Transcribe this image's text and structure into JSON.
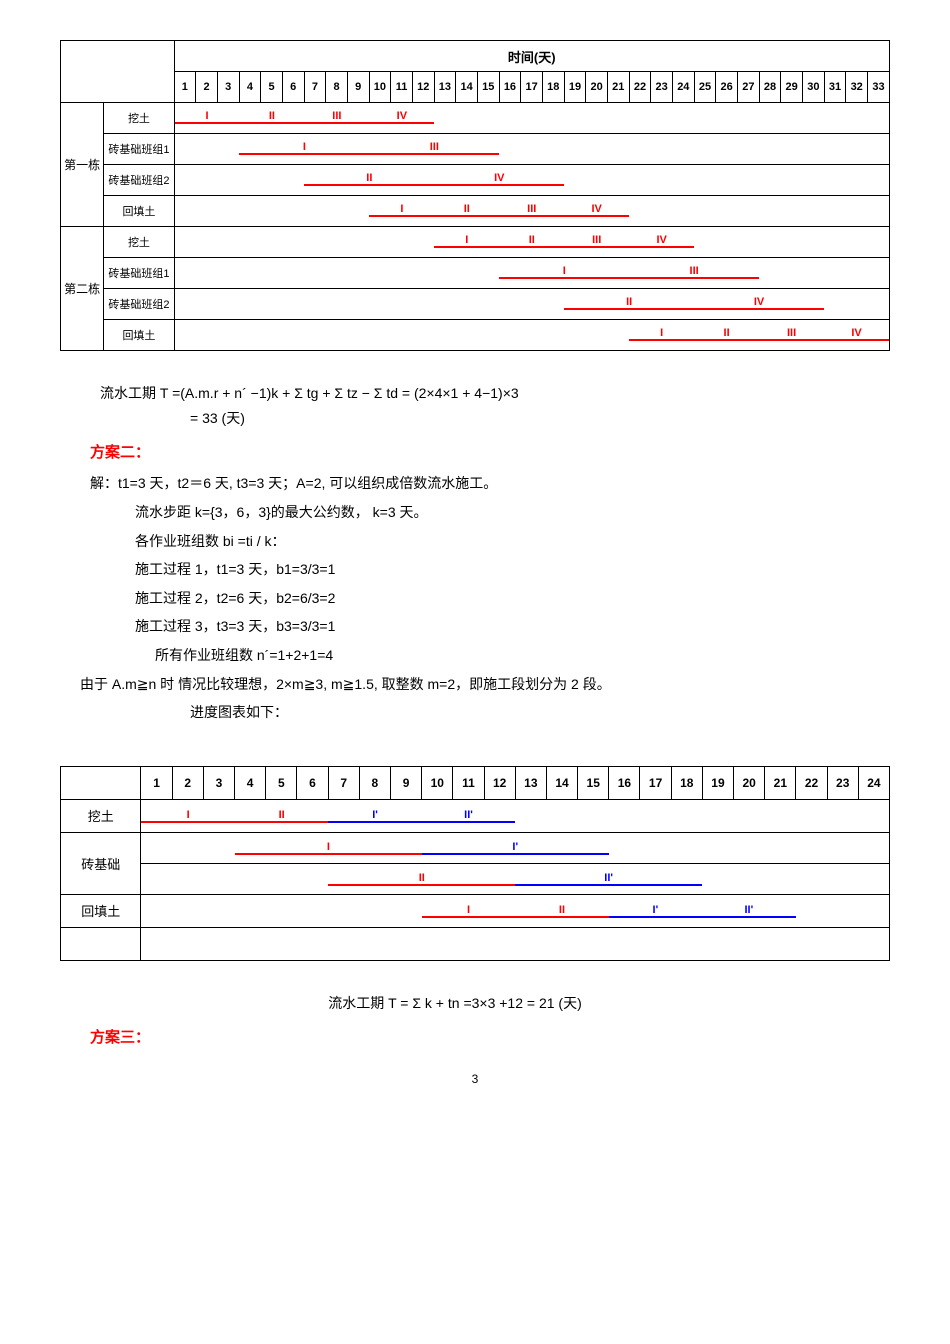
{
  "gantt1": {
    "time_header": "时间(天)",
    "days": 33,
    "groups": [
      {
        "label": "第一栋",
        "rows": [
          "挖土",
          "砖基础班组1",
          "砖基础班组2",
          "回填土"
        ]
      },
      {
        "label": "第二栋",
        "rows": [
          "挖土",
          "砖基础班组1",
          "砖基础班组2",
          "回填土"
        ]
      }
    ],
    "bars": [
      {
        "row": 0,
        "start": 1,
        "end": 3,
        "label": "I",
        "color": "#ff0000"
      },
      {
        "row": 0,
        "start": 4,
        "end": 6,
        "label": "II",
        "color": "#ff0000"
      },
      {
        "row": 0,
        "start": 7,
        "end": 9,
        "label": "III",
        "color": "#ff0000"
      },
      {
        "row": 0,
        "start": 10,
        "end": 12,
        "label": "IV",
        "color": "#ff0000"
      },
      {
        "row": 1,
        "start": 4,
        "end": 9,
        "label": "I",
        "color": "#ff0000"
      },
      {
        "row": 1,
        "start": 10,
        "end": 15,
        "label": "III",
        "color": "#ff0000"
      },
      {
        "row": 2,
        "start": 7,
        "end": 12,
        "label": "II",
        "color": "#ff0000"
      },
      {
        "row": 2,
        "start": 13,
        "end": 18,
        "label": "IV",
        "color": "#ff0000"
      },
      {
        "row": 3,
        "start": 10,
        "end": 12,
        "label": "I",
        "color": "#ff0000"
      },
      {
        "row": 3,
        "start": 13,
        "end": 15,
        "label": "II",
        "color": "#ff0000"
      },
      {
        "row": 3,
        "start": 16,
        "end": 18,
        "label": "III",
        "color": "#ff0000"
      },
      {
        "row": 3,
        "start": 19,
        "end": 21,
        "label": "IV",
        "color": "#ff0000"
      },
      {
        "row": 4,
        "start": 13,
        "end": 15,
        "label": "I",
        "color": "#ff0000"
      },
      {
        "row": 4,
        "start": 16,
        "end": 18,
        "label": "II",
        "color": "#ff0000"
      },
      {
        "row": 4,
        "start": 19,
        "end": 21,
        "label": "III",
        "color": "#ff0000"
      },
      {
        "row": 4,
        "start": 22,
        "end": 24,
        "label": "IV",
        "color": "#ff0000"
      },
      {
        "row": 5,
        "start": 16,
        "end": 21,
        "label": "I",
        "color": "#ff0000"
      },
      {
        "row": 5,
        "start": 22,
        "end": 27,
        "label": "III",
        "color": "#ff0000"
      },
      {
        "row": 6,
        "start": 19,
        "end": 24,
        "label": "II",
        "color": "#ff0000"
      },
      {
        "row": 6,
        "start": 25,
        "end": 30,
        "label": "IV",
        "color": "#ff0000"
      },
      {
        "row": 7,
        "start": 22,
        "end": 24,
        "label": "I",
        "color": "#ff0000"
      },
      {
        "row": 7,
        "start": 25,
        "end": 27,
        "label": "II",
        "color": "#ff0000"
      },
      {
        "row": 7,
        "start": 28,
        "end": 30,
        "label": "III",
        "color": "#ff0000"
      },
      {
        "row": 7,
        "start": 31,
        "end": 33,
        "label": "IV",
        "color": "#ff0000"
      }
    ]
  },
  "formula1_line1": "流水工期 T =(A.m.r + n´ −1)k + Σ tg + Σ tz − Σ td = (2×4×1 + 4−1)×3",
  "formula1_line2": "= 33 (天)",
  "heading2": "方案二：",
  "sol2": {
    "l1": "解：t1=3 天，t2＝6 天, t3=3 天；A=2, 可以组织成倍数流水施工。",
    "l2": "流水步距 k={3，6，3}的最大公约数， k=3 天。",
    "l3": "各作业班组数 bi =ti / k：",
    "l4": "施工过程 1，t1=3 天，b1=3/3=1",
    "l5": "施工过程 2，t2=6 天，b2=6/3=2",
    "l6": "施工过程 3，t3=3 天，b3=3/3=1",
    "l7": "所有作业班组数 n´=1+2+1=4",
    "l8": "由于 A.m≧n 时 情况比较理想，2×m≧3,  m≧1.5,  取整数 m=2，即施工段划分为 2 段。",
    "l9": "进度图表如下："
  },
  "gantt2": {
    "days": 24,
    "rows": [
      "挖土",
      "砖基础",
      "回填土"
    ],
    "bars": [
      {
        "row": 0,
        "sub": 0,
        "start": 1,
        "end": 3,
        "label": "I",
        "color": "#ff0000"
      },
      {
        "row": 0,
        "sub": 0,
        "start": 4,
        "end": 6,
        "label": "II",
        "color": "#ff0000"
      },
      {
        "row": 0,
        "sub": 0,
        "start": 7,
        "end": 9,
        "label": "I'",
        "color": "#0000ff"
      },
      {
        "row": 0,
        "sub": 0,
        "start": 10,
        "end": 12,
        "label": "II'",
        "color": "#0000ff"
      },
      {
        "row": 1,
        "sub": 0,
        "start": 4,
        "end": 9,
        "label": "I",
        "color": "#ff0000"
      },
      {
        "row": 1,
        "sub": 0,
        "start": 10,
        "end": 15,
        "label": "I'",
        "color": "#0000ff"
      },
      {
        "row": 1,
        "sub": 1,
        "start": 7,
        "end": 12,
        "label": "II",
        "color": "#ff0000"
      },
      {
        "row": 1,
        "sub": 1,
        "start": 13,
        "end": 18,
        "label": "II'",
        "color": "#0000ff"
      },
      {
        "row": 2,
        "sub": 0,
        "start": 10,
        "end": 12,
        "label": "I",
        "color": "#ff0000"
      },
      {
        "row": 2,
        "sub": 0,
        "start": 13,
        "end": 15,
        "label": "II",
        "color": "#ff0000"
      },
      {
        "row": 2,
        "sub": 0,
        "start": 16,
        "end": 18,
        "label": "I'",
        "color": "#0000ff"
      },
      {
        "row": 2,
        "sub": 0,
        "start": 19,
        "end": 21,
        "label": "II'",
        "color": "#0000ff"
      }
    ]
  },
  "formula2": "流水工期 T = Σ k + tn =3×3  +12  =  21 (天)",
  "heading3": "方案三：",
  "page_num": "3"
}
